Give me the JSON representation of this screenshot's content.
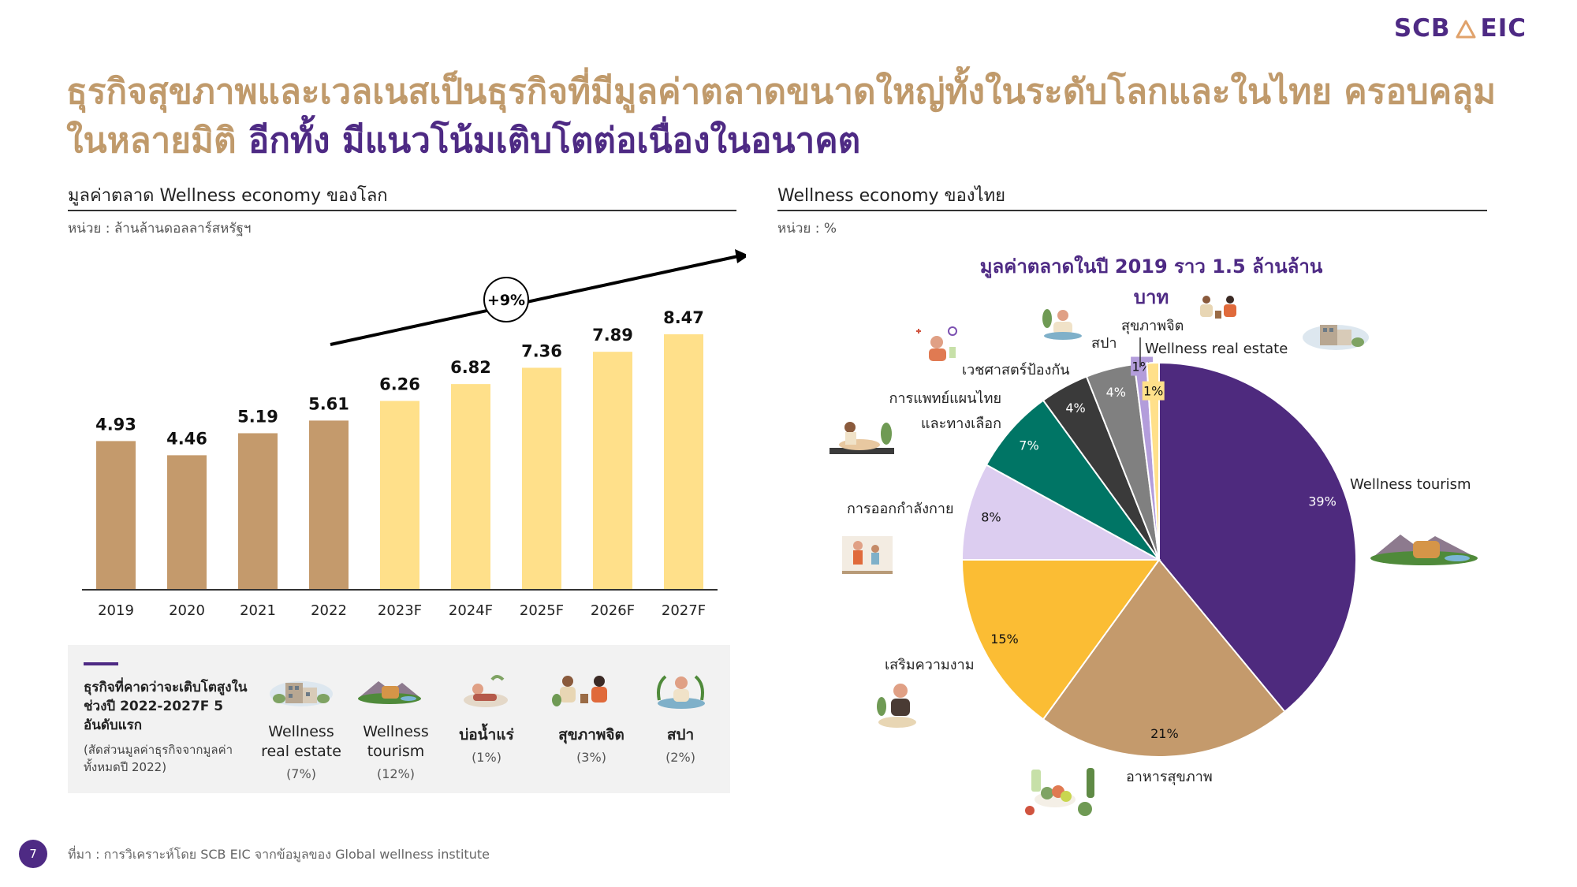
{
  "logo": {
    "left": "SCB",
    "right": "EIC"
  },
  "headline": {
    "line1": "ธุรกิจสุขภาพและเวลเนสเป็นธุรกิจที่มีมูลค่าตลาดขนาดใหญ่ทั้งในระดับโลกและในไทย ครอบคลุม",
    "line2a": "ในหลายมิติ",
    "line2b": " อีกทั้ง มีแนวโน้มเติบโตต่อเนื่องในอนาคต"
  },
  "left_section": {
    "title": "มูลค่าตลาด Wellness economy ของโลก",
    "unit": "หน่วย : ล้านล้านดอลลาร์สหรัฐฯ"
  },
  "right_section": {
    "title": "Wellness economy ของไทย",
    "unit": "หน่วย : %"
  },
  "growth_box": {
    "title": "ธุรกิจที่คาดว่าจะเติบโตสูงในช่วงปี 2022-2027F 5 อันดับแรก",
    "note": "(สัดส่วนมูลค่าธุรกิจจากมูลค่าทั้งหมดปี 2022)",
    "items": [
      {
        "name": "Wellness real estate",
        "pct": "(7%)",
        "icon": "real-estate-illustration"
      },
      {
        "name": "Wellness tourism",
        "pct": "(12%)",
        "icon": "tourism-illustration"
      },
      {
        "name": "บ่อน้ำแร่",
        "pct": "(1%)",
        "icon": "hot-spring-illustration"
      },
      {
        "name": "สุขภาพจิต",
        "pct": "(3%)",
        "icon": "mental-health-illustration"
      },
      {
        "name": "สปา",
        "pct": "(2%)",
        "icon": "spa-illustration"
      }
    ]
  },
  "footer": {
    "source": "ที่มา : การวิเคราะห์โดย SCB EIC จากข้อมูลของ Global wellness institute",
    "page": "7"
  },
  "colors": {
    "actual": "#c49a6c",
    "forecast": "#ffe08a",
    "purple": "#4e2a84",
    "tan": "#c09a6b"
  },
  "chart_data": [
    {
      "type": "bar",
      "categories": [
        "2019",
        "2020",
        "2021",
        "2022",
        "2023F",
        "2024F",
        "2025F",
        "2026F",
        "2027F"
      ],
      "values": [
        4.93,
        4.46,
        5.19,
        5.61,
        6.26,
        6.82,
        7.36,
        7.89,
        8.47
      ],
      "labels": [
        "4.93",
        "4.46",
        "5.19",
        "5.61",
        "6.26",
        "6.82",
        "7.36",
        "7.89",
        "8.47"
      ],
      "forecast_from_index": 4,
      "annotation": "+9%",
      "ylim": [
        0,
        8.47
      ]
    },
    {
      "type": "pie",
      "title": "มูลค่าตลาดในปี 2019 ราว 1.5 ล้านล้านบาท",
      "slices": [
        {
          "name": "Wellness tourism",
          "value": 39,
          "label": "39%",
          "color": "#4e2a7e"
        },
        {
          "name": "อาหารสุขภาพ",
          "value": 21,
          "label": "21%",
          "color": "#c49a6c"
        },
        {
          "name": "เสริมความงาม",
          "value": 15,
          "label": "15%",
          "color": "#fbbd34"
        },
        {
          "name": "การออกกำลังกาย",
          "value": 8,
          "label": "8%",
          "color": "#dccdf0"
        },
        {
          "name": "การแพทย์แผนไทยและทางเลือก",
          "value": 7,
          "label": "7%",
          "color": "#007565"
        },
        {
          "name": "เวชศาสตร์ป้องกัน",
          "value": 4,
          "label": "4%",
          "color": "#3a3a3a"
        },
        {
          "name": "สปา",
          "value": 4,
          "label": "4%",
          "color": "#808080"
        },
        {
          "name": "สุขภาพจิต",
          "value": 1,
          "label": "1%",
          "color": "#b39ddb"
        },
        {
          "name": "Wellness real estate",
          "value": 1,
          "label": "1%",
          "color": "#ffe08a"
        }
      ]
    }
  ]
}
